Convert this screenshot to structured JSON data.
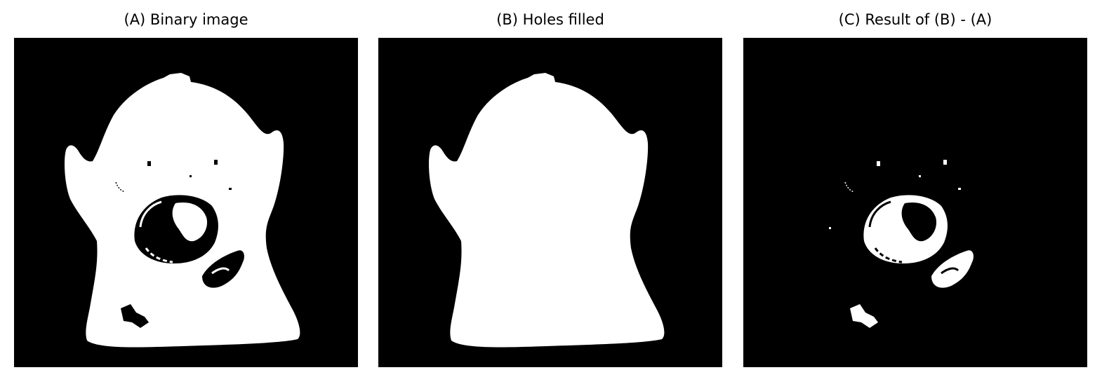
{
  "panels": [
    {
      "title": "(A) Binary image",
      "image": "binary-image"
    },
    {
      "title": "(B) Holes filled",
      "image": "holes-filled"
    },
    {
      "title": "(C) Result of (B) - (A)",
      "image": "holes-only"
    }
  ],
  "colors": {
    "background": "#000000",
    "foreground": "#ffffff",
    "page": "#ffffff",
    "text": "#000000"
  }
}
